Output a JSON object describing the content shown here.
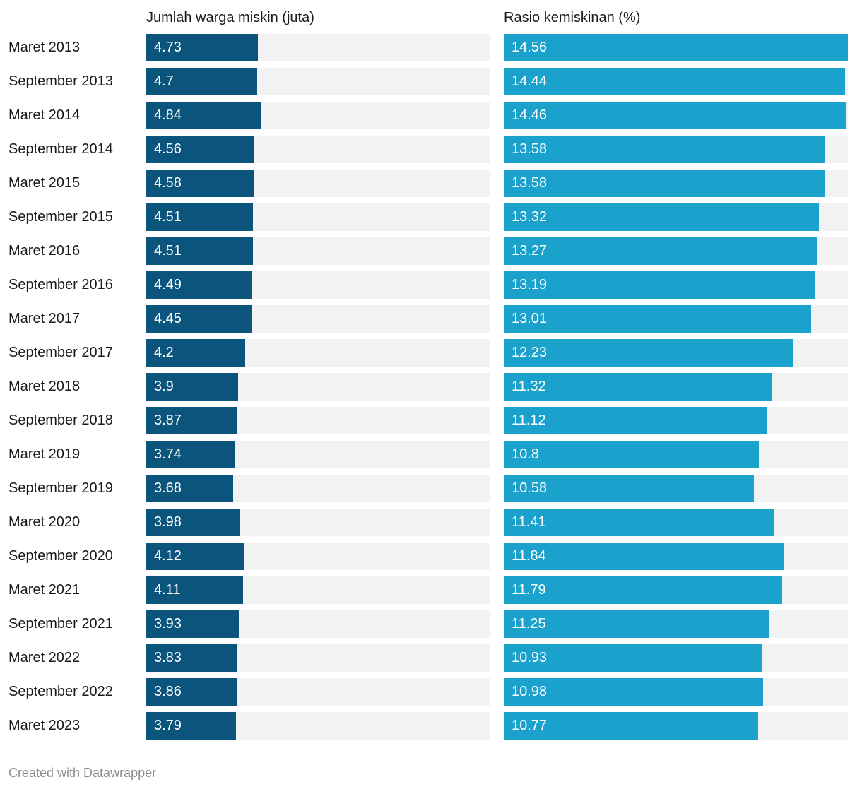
{
  "header": {
    "left": "Jumlah warga miskin (juta)",
    "right": "Rasio kemiskinan (%)"
  },
  "footer": {
    "attribution": "Created with Datawrapper"
  },
  "colors": {
    "left_bar": "#0b547c",
    "right_bar": "#1ba2cc",
    "track": "#f2f2f2",
    "label_text": "#1a1a1a",
    "value_text": "#ffffff",
    "footer_text": "#8e8e8e"
  },
  "chart_data": {
    "type": "bar",
    "orientation": "horizontal",
    "title": "",
    "categories": [
      "Maret 2013",
      "September 2013",
      "Maret 2014",
      "September 2014",
      "Maret 2015",
      "September 2015",
      "Maret 2016",
      "September 2016",
      "Maret 2017",
      "September 2017",
      "Maret 2018",
      "September 2018",
      "Maret 2019",
      "September 2019",
      "Maret 2020",
      "September 2020",
      "Maret 2021",
      "September 2021",
      "Maret 2022",
      "September 2022",
      "Maret 2023"
    ],
    "series": [
      {
        "name": "Jumlah warga miskin (juta)",
        "values": [
          4.73,
          4.7,
          4.84,
          4.56,
          4.58,
          4.51,
          4.51,
          4.49,
          4.45,
          4.2,
          3.9,
          3.87,
          3.74,
          3.68,
          3.98,
          4.12,
          4.11,
          3.93,
          3.83,
          3.86,
          3.79
        ]
      },
      {
        "name": "Rasio kemiskinan (%)",
        "values": [
          14.56,
          14.44,
          14.46,
          13.58,
          13.58,
          13.32,
          13.27,
          13.19,
          13.01,
          12.23,
          11.32,
          11.12,
          10.8,
          10.58,
          11.41,
          11.84,
          11.79,
          11.25,
          10.93,
          10.98,
          10.77
        ]
      }
    ],
    "xlim": [
      0,
      14.56
    ],
    "shared_scale": true,
    "value_labels": "inside-left",
    "grid": false,
    "legend": "column-headers"
  }
}
